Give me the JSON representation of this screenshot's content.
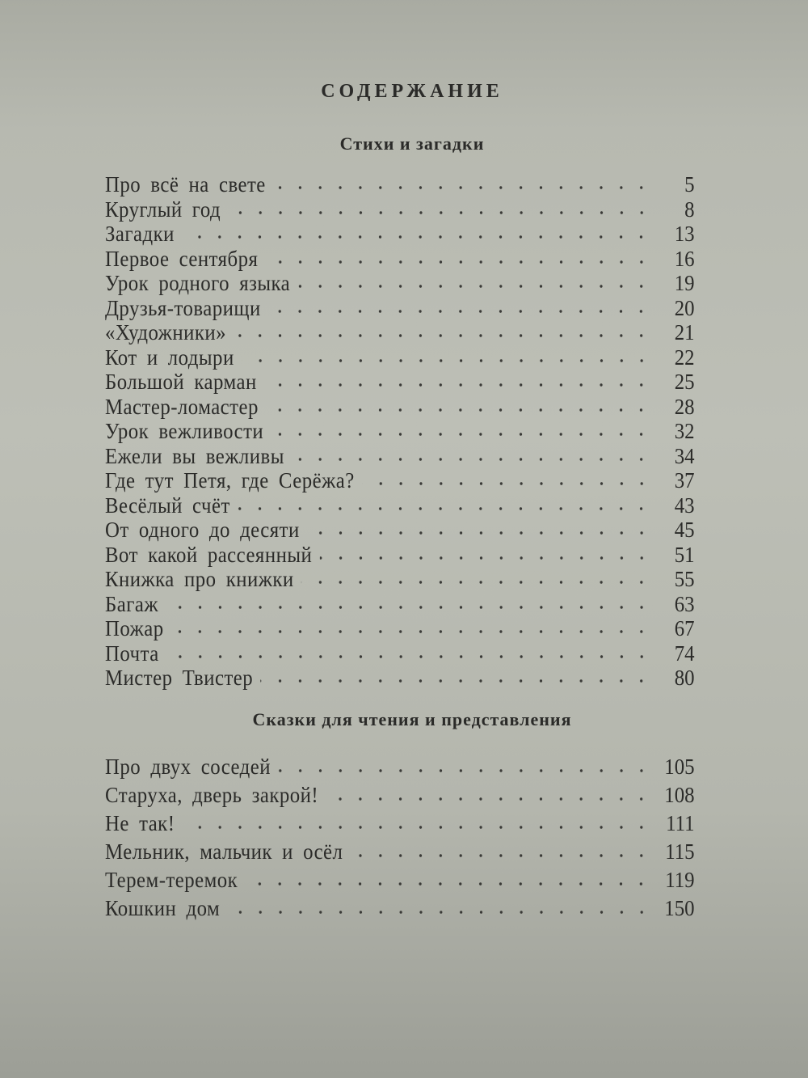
{
  "title": "СОДЕРЖАНИЕ",
  "sections": [
    {
      "heading": "Стихи и загадки",
      "entries": [
        {
          "title": "Про всё на свете",
          "page": "5"
        },
        {
          "title": "Круглый год",
          "page": "8"
        },
        {
          "title": "Загадки",
          "page": "13"
        },
        {
          "title": "Первое сентября",
          "page": "16"
        },
        {
          "title": "Урок родного языка",
          "page": "19"
        },
        {
          "title": "Друзья-товарищи",
          "page": "20"
        },
        {
          "title": "«Художники»",
          "page": "21"
        },
        {
          "title": "Кот и лодыри",
          "page": "22"
        },
        {
          "title": "Большой карман",
          "page": "25"
        },
        {
          "title": "Мастер-ломастер",
          "page": "28"
        },
        {
          "title": "Урок вежливости",
          "page": "32"
        },
        {
          "title": "Ежели вы вежливы",
          "page": "34"
        },
        {
          "title": "Где тут Петя, где Серёжа?",
          "page": "37"
        },
        {
          "title": "Весёлый счёт",
          "page": "43"
        },
        {
          "title": "От одного до десяти",
          "page": "45"
        },
        {
          "title": "Вот какой рассеянный",
          "page": "51"
        },
        {
          "title": "Книжка про книжки",
          "page": "55"
        },
        {
          "title": "Багаж",
          "page": "63"
        },
        {
          "title": "Пожар",
          "page": "67"
        },
        {
          "title": "Почта",
          "page": "74"
        },
        {
          "title": "Мистер Твистер",
          "page": "80"
        }
      ]
    },
    {
      "heading": "Сказки для чтения и представления",
      "entries": [
        {
          "title": "Про двух соседей",
          "page": "105"
        },
        {
          "title": "Старуха, дверь закрой!",
          "page": "108"
        },
        {
          "title": "Не так!",
          "page": "111"
        },
        {
          "title": "Мельник, мальчик и осёл",
          "page": "115"
        },
        {
          "title": "Терем-теремок",
          "page": "119"
        },
        {
          "title": "Кошкин дом",
          "page": "150"
        }
      ]
    }
  ]
}
